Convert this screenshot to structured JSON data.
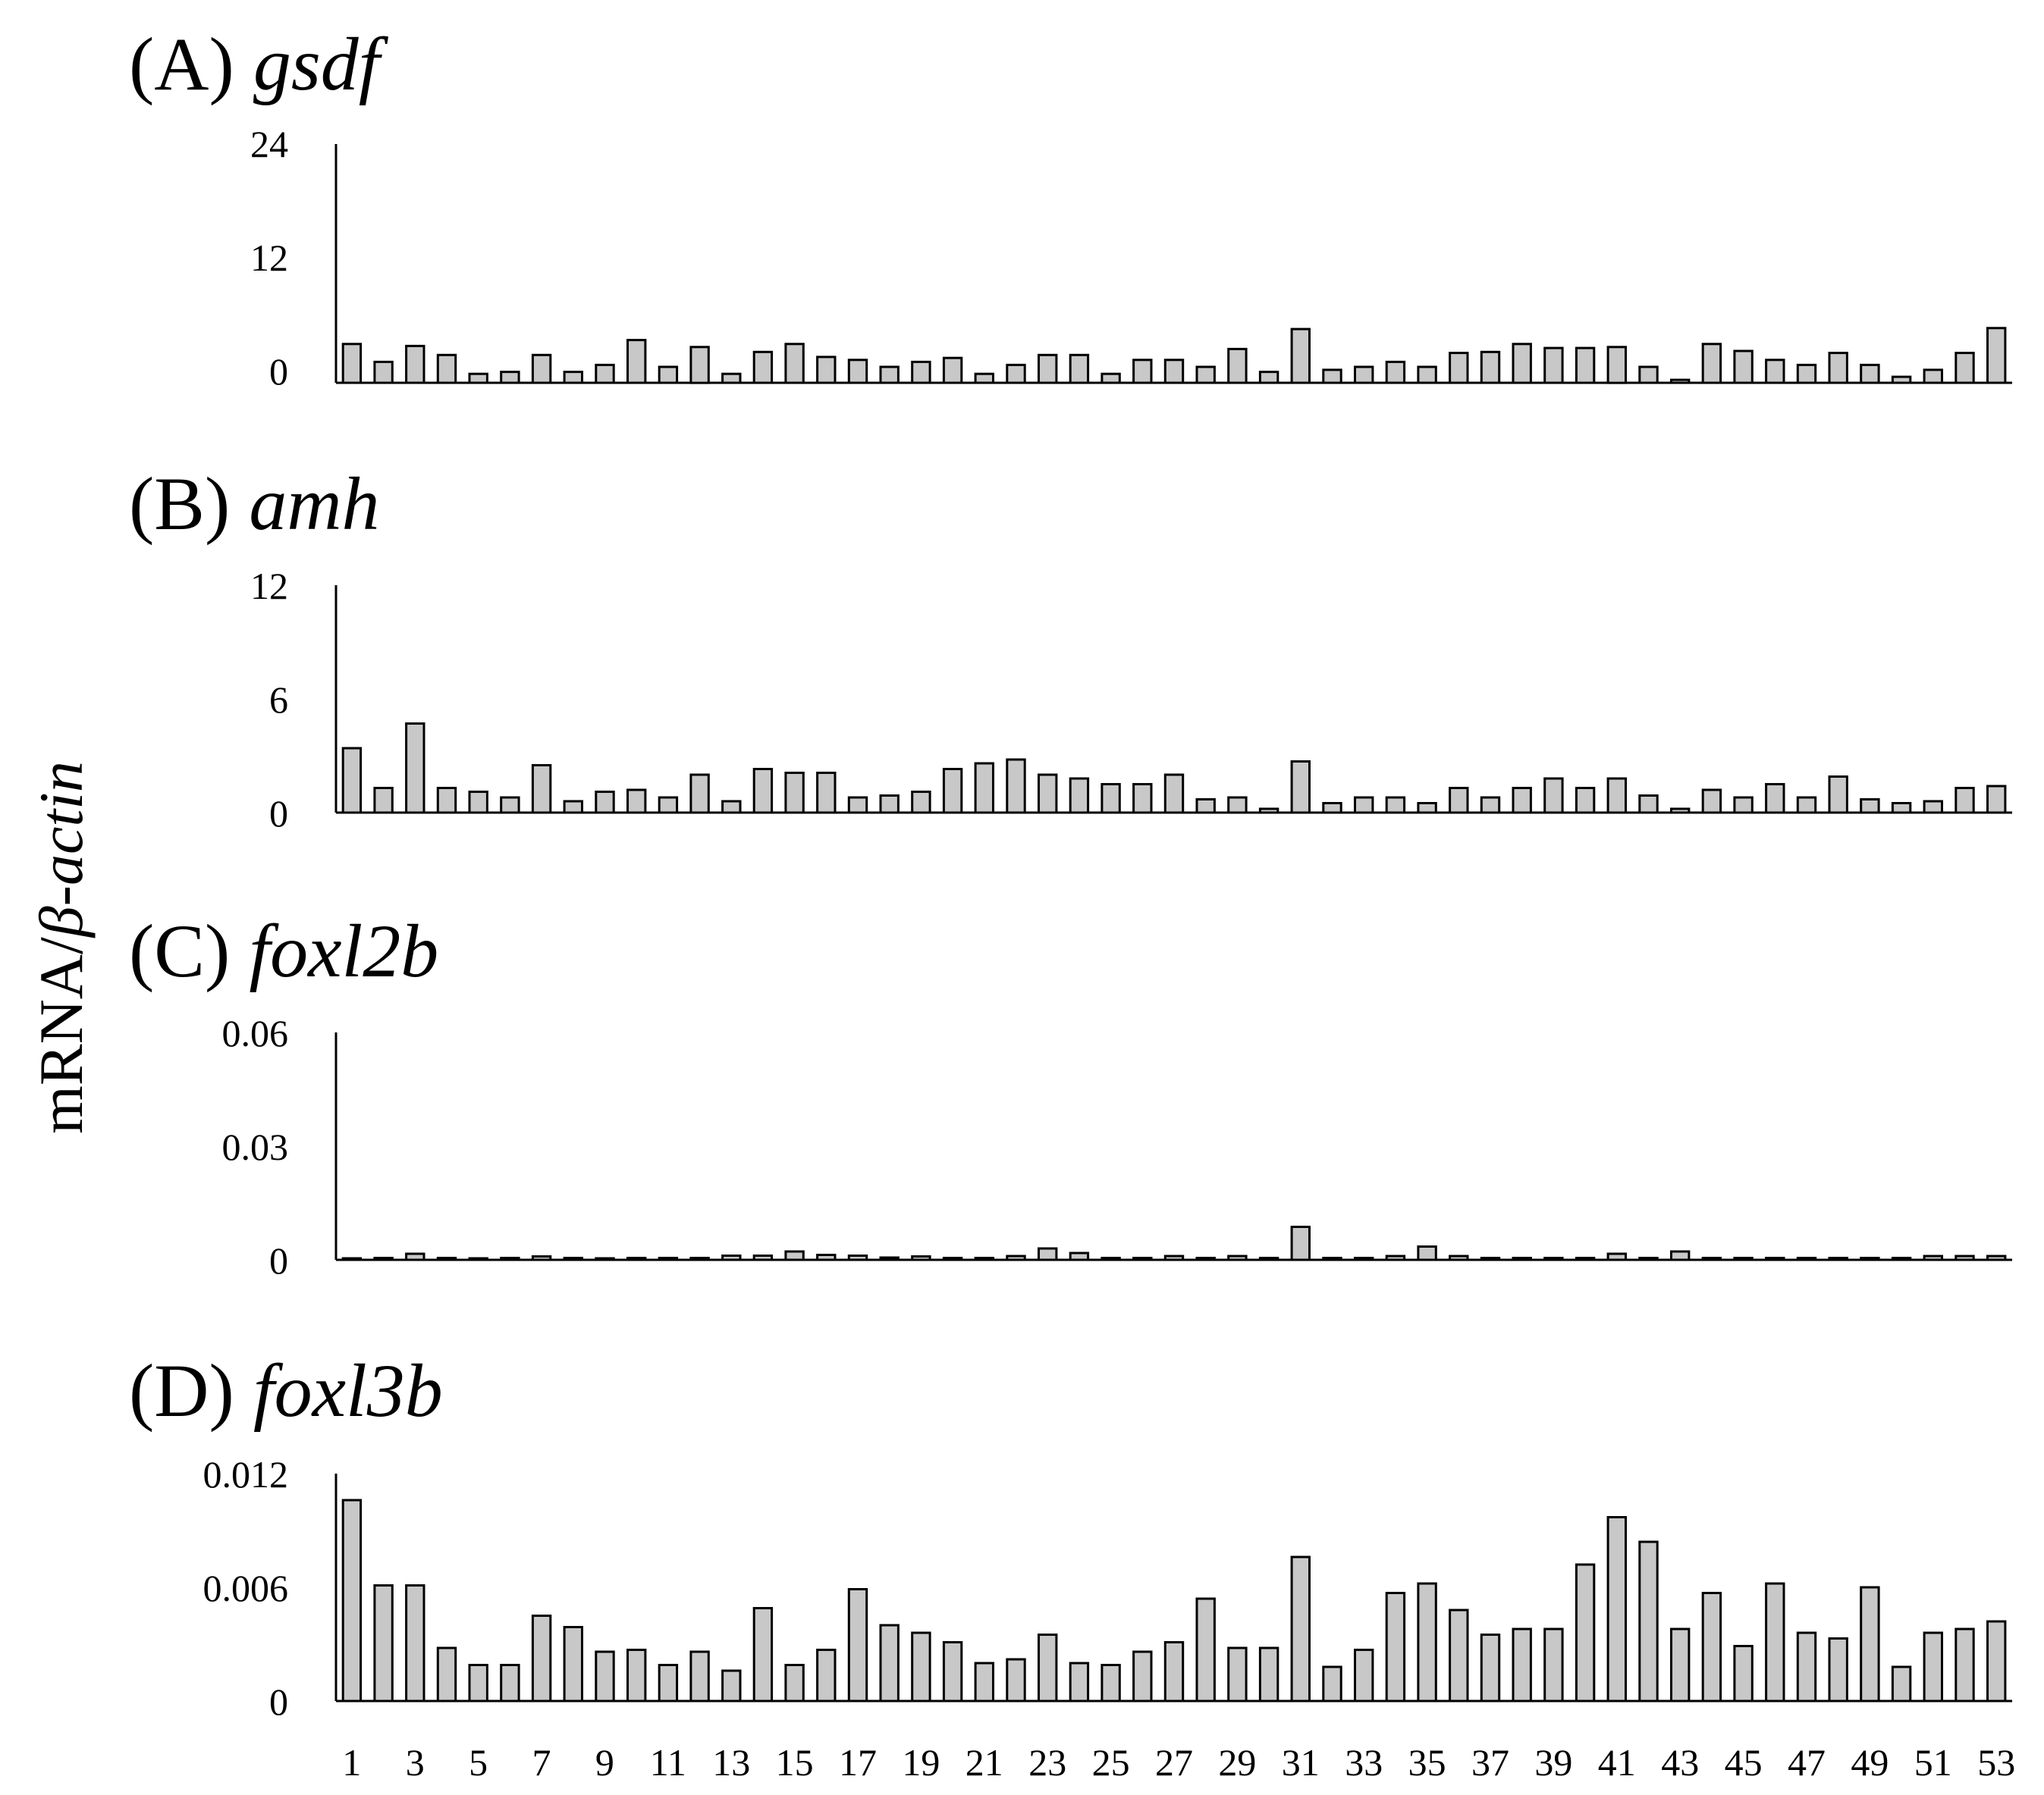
{
  "y_axis_label": {
    "prefix": "mRNA/",
    "italic": "β-actin"
  },
  "x_tick_labels": [
    "1",
    "3",
    "5",
    "7",
    "9",
    "11",
    "13",
    "15",
    "17",
    "19",
    "21",
    "23",
    "25",
    "27",
    "29",
    "31",
    "33",
    "35",
    "37",
    "39",
    "41",
    "43",
    "45",
    "47",
    "49",
    "51",
    "53"
  ],
  "chart_data": [
    {
      "type": "bar",
      "panel": "(A)",
      "title": "gsdf",
      "ylabel": "mRNA/β-actin",
      "ylim": [
        0,
        24
      ],
      "yticks": [
        "0",
        "12",
        "24"
      ],
      "categories": [
        1,
        2,
        3,
        4,
        5,
        6,
        7,
        8,
        9,
        10,
        11,
        12,
        13,
        14,
        15,
        16,
        17,
        18,
        19,
        20,
        21,
        22,
        23,
        24,
        25,
        26,
        27,
        28,
        29,
        30,
        31,
        32,
        33,
        34,
        35,
        36,
        37,
        38,
        39,
        40,
        41,
        42,
        43,
        44,
        45,
        46,
        47,
        48,
        49,
        50,
        51,
        52,
        53
      ],
      "values": [
        3.9,
        2.1,
        3.7,
        2.8,
        0.9,
        1.1,
        2.8,
        1.1,
        1.8,
        4.3,
        1.6,
        3.6,
        0.9,
        3.1,
        3.9,
        2.6,
        2.3,
        1.6,
        2.1,
        2.5,
        0.9,
        1.8,
        2.8,
        2.8,
        0.9,
        2.3,
        2.3,
        1.6,
        3.4,
        1.1,
        5.4,
        1.3,
        1.6,
        2.1,
        1.6,
        3.0,
        3.1,
        3.9,
        3.5,
        3.5,
        3.6,
        1.6,
        0.3,
        3.9,
        3.2,
        2.3,
        1.8,
        3.0,
        1.8,
        0.6,
        1.3,
        3.0,
        5.5
      ]
    },
    {
      "type": "bar",
      "panel": "(B)",
      "title": "amh",
      "ylabel": "mRNA/β-actin",
      "ylim": [
        0,
        12
      ],
      "yticks": [
        "0",
        "6",
        "12"
      ],
      "categories": [
        1,
        2,
        3,
        4,
        5,
        6,
        7,
        8,
        9,
        10,
        11,
        12,
        13,
        14,
        15,
        16,
        17,
        18,
        19,
        20,
        21,
        22,
        23,
        24,
        25,
        26,
        27,
        28,
        29,
        30,
        31,
        32,
        33,
        34,
        35,
        36,
        37,
        38,
        39,
        40,
        41,
        42,
        43,
        44,
        45,
        46,
        47,
        48,
        49,
        50,
        51,
        52,
        53
      ],
      "values": [
        3.4,
        1.3,
        4.7,
        1.3,
        1.1,
        0.8,
        2.5,
        0.6,
        1.1,
        1.2,
        0.8,
        2.0,
        0.6,
        2.3,
        2.1,
        2.1,
        0.8,
        0.9,
        1.1,
        2.3,
        2.6,
        2.8,
        2.0,
        1.8,
        1.5,
        1.5,
        2.0,
        0.7,
        0.8,
        0.2,
        2.7,
        0.5,
        0.8,
        0.8,
        0.5,
        1.3,
        0.8,
        1.3,
        1.8,
        1.3,
        1.8,
        0.9,
        0.2,
        1.2,
        0.8,
        1.5,
        0.8,
        1.9,
        0.7,
        0.5,
        0.6,
        1.3,
        1.4
      ]
    },
    {
      "type": "bar",
      "panel": "(C)",
      "title": "foxl2b",
      "ylabel": "mRNA/β-actin",
      "ylim": [
        0,
        0.06
      ],
      "yticks": [
        "0",
        "0.03",
        "0.06"
      ],
      "categories": [
        1,
        2,
        3,
        4,
        5,
        6,
        7,
        8,
        9,
        10,
        11,
        12,
        13,
        14,
        15,
        16,
        17,
        18,
        19,
        20,
        21,
        22,
        23,
        24,
        25,
        26,
        27,
        28,
        29,
        30,
        31,
        32,
        33,
        34,
        35,
        36,
        37,
        38,
        39,
        40,
        41,
        42,
        43,
        44,
        45,
        46,
        47,
        48,
        49,
        50,
        51,
        52,
        53
      ],
      "values": [
        0.0004,
        0.0005,
        0.0016,
        0.0005,
        0.0004,
        0.0005,
        0.0009,
        0.0005,
        0.0004,
        0.0005,
        0.0005,
        0.0005,
        0.0011,
        0.0011,
        0.0022,
        0.0013,
        0.0011,
        0.0006,
        0.0009,
        0.0005,
        0.0005,
        0.001,
        0.003,
        0.0018,
        0.0005,
        0.0005,
        0.001,
        0.0005,
        0.001,
        0.0005,
        0.0087,
        0.0005,
        0.0005,
        0.001,
        0.0035,
        0.001,
        0.0005,
        0.0005,
        0.0005,
        0.0005,
        0.0016,
        0.0005,
        0.0022,
        0.0005,
        0.0005,
        0.0005,
        0.0005,
        0.0005,
        0.0005,
        0.0005,
        0.001,
        0.001,
        0.001
      ]
    },
    {
      "type": "bar",
      "panel": "(D)",
      "title": "foxl3b",
      "ylabel": "mRNA/β-actin",
      "ylim": [
        0,
        0.012
      ],
      "yticks": [
        "0",
        "0.006",
        "0.012"
      ],
      "categories": [
        1,
        2,
        3,
        4,
        5,
        6,
        7,
        8,
        9,
        10,
        11,
        12,
        13,
        14,
        15,
        16,
        17,
        18,
        19,
        20,
        21,
        22,
        23,
        24,
        25,
        26,
        27,
        28,
        29,
        30,
        31,
        32,
        33,
        34,
        35,
        36,
        37,
        38,
        39,
        40,
        41,
        42,
        43,
        44,
        45,
        46,
        47,
        48,
        49,
        50,
        51,
        52,
        53
      ],
      "values": [
        0.0106,
        0.0061,
        0.0061,
        0.0028,
        0.0019,
        0.0019,
        0.0045,
        0.0039,
        0.0026,
        0.0027,
        0.0019,
        0.0026,
        0.0016,
        0.0049,
        0.0019,
        0.0027,
        0.0059,
        0.004,
        0.0036,
        0.0031,
        0.002,
        0.0022,
        0.0035,
        0.002,
        0.0019,
        0.0026,
        0.0031,
        0.0054,
        0.0028,
        0.0028,
        0.0076,
        0.0018,
        0.0027,
        0.0057,
        0.0062,
        0.0048,
        0.0035,
        0.0038,
        0.0038,
        0.0072,
        0.0097,
        0.0084,
        0.0038,
        0.0057,
        0.0029,
        0.0062,
        0.0036,
        0.0033,
        0.006,
        0.0018,
        0.0036,
        0.0038,
        0.0042
      ]
    }
  ]
}
